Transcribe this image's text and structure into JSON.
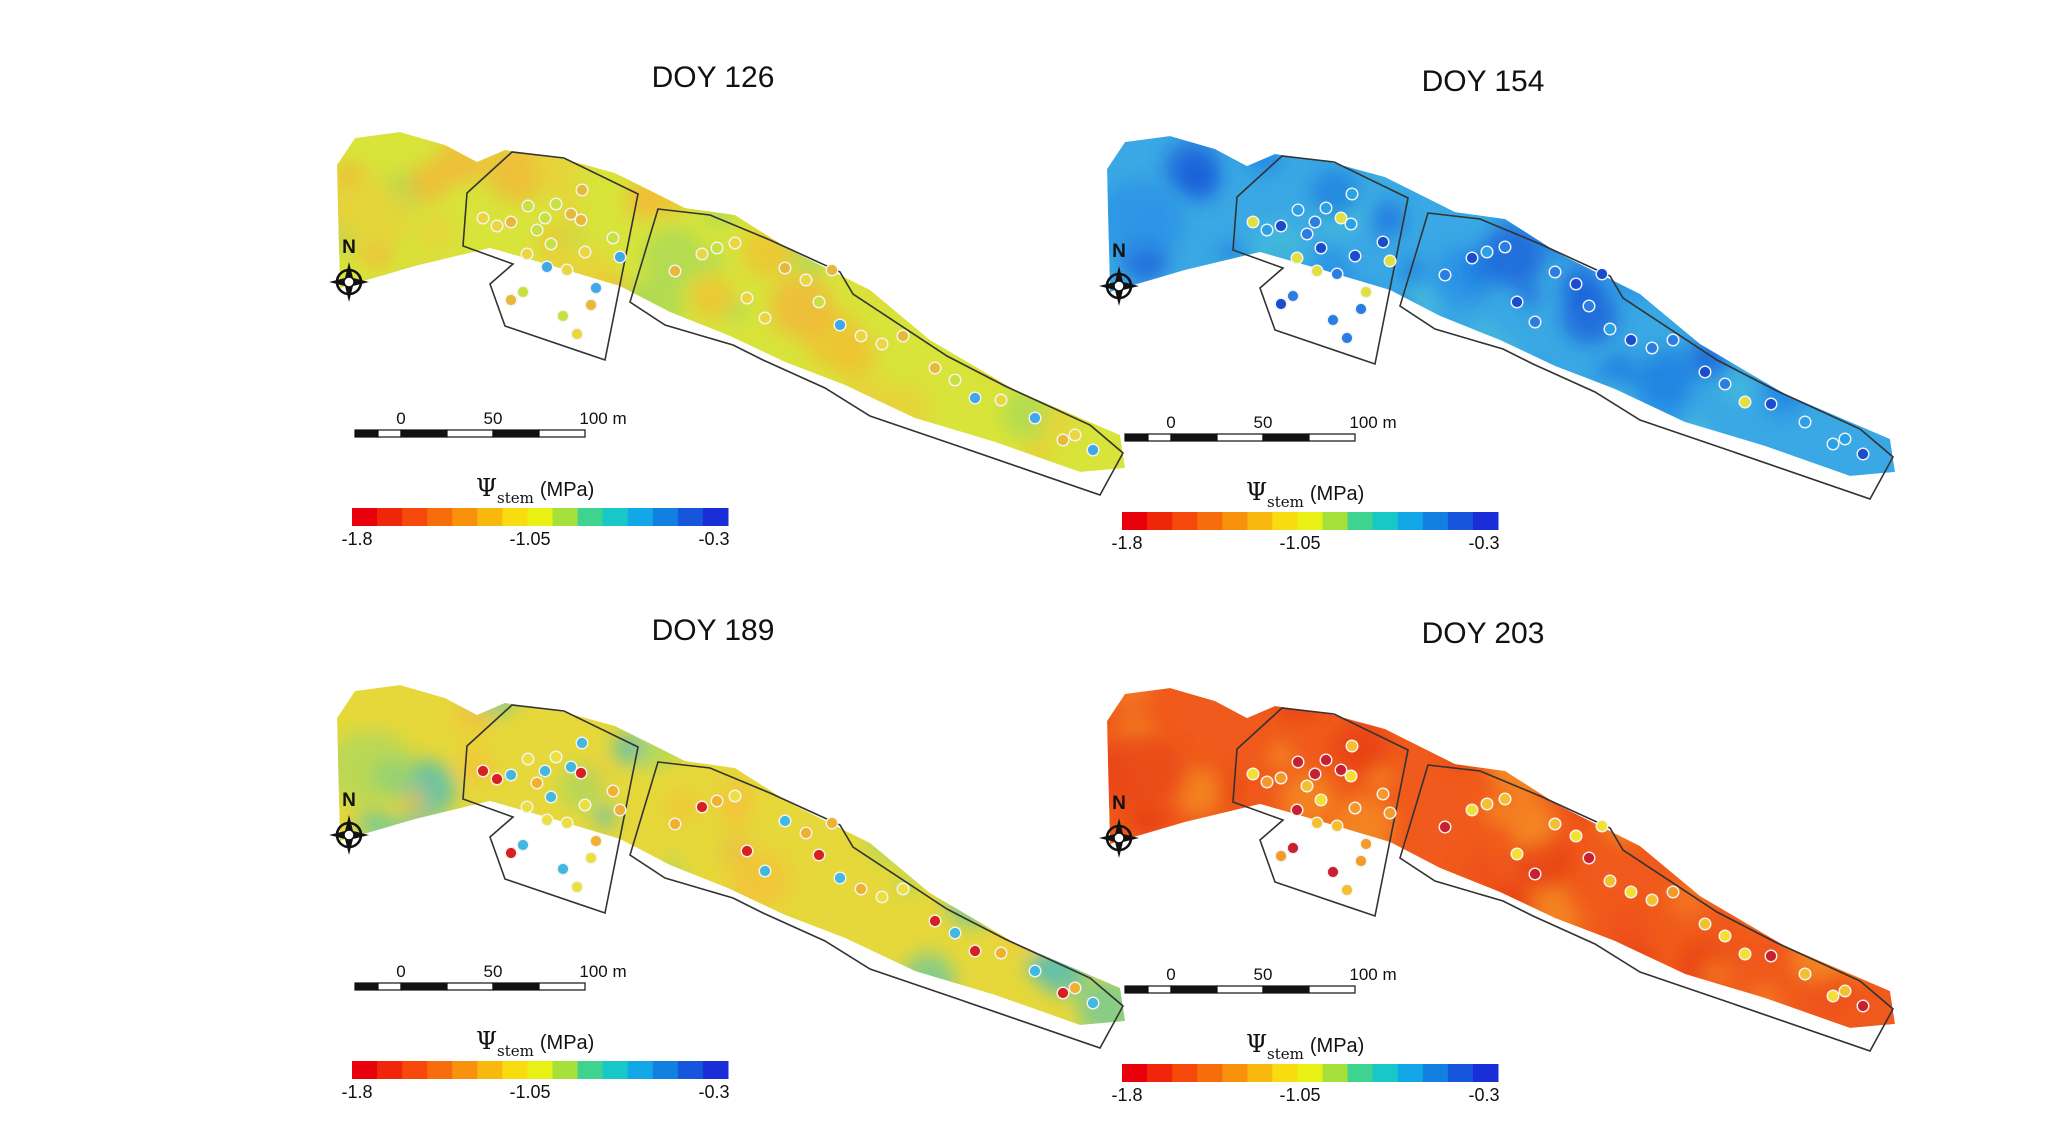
{
  "panels": [
    {
      "title": "DOY 126",
      "field_color": "#d8e43a",
      "patches": [
        "#f0c030",
        "#e8d03a",
        "#a8d85a",
        "#f4b43a"
      ],
      "tree_colors": [
        "#ecd640",
        "#c8e040",
        "#40a8e8",
        "#e8b838"
      ]
    },
    {
      "title": "DOY 154",
      "field_color": "#3aa8e4",
      "patches": [
        "#1e7ce0",
        "#2a90e6",
        "#48c0d8",
        "#1a5ed8"
      ],
      "tree_colors": [
        "#2a7ee2",
        "#1a4cd0",
        "#e0e040",
        "#2aa0e8"
      ]
    },
    {
      "title": "DOY 189",
      "field_color": "#e6d83a",
      "patches": [
        "#6ac8a0",
        "#a8d860",
        "#f4c03a",
        "#48bcc0"
      ],
      "tree_colors": [
        "#40b8e0",
        "#ece040",
        "#f0b030",
        "#d82020"
      ]
    },
    {
      "title": "DOY 203",
      "field_color": "#f05a1c",
      "patches": [
        "#f47a20",
        "#e63c14",
        "#f49024",
        "#ee5018"
      ],
      "tree_colors": [
        "#f4e030",
        "#f4c030",
        "#f49a2a",
        "#c82030"
      ]
    }
  ],
  "north_label": "N",
  "scale_bar": {
    "ticks": [
      "0",
      "50",
      "100 m"
    ]
  },
  "legend": {
    "symbol": "Ψ",
    "subscript": "stem",
    "unit": "(MPa)",
    "ticks": [
      "-1.8",
      "-1.05",
      "-0.3"
    ],
    "colors": [
      "#e8000b",
      "#f0260a",
      "#f5480a",
      "#f76d0b",
      "#f8920c",
      "#f9b80e",
      "#f9dc10",
      "#e8f014",
      "#a6e03a",
      "#3ed490",
      "#18c8c8",
      "#12a8e8",
      "#1280e0",
      "#1656dc",
      "#1a2ed8"
    ]
  }
}
